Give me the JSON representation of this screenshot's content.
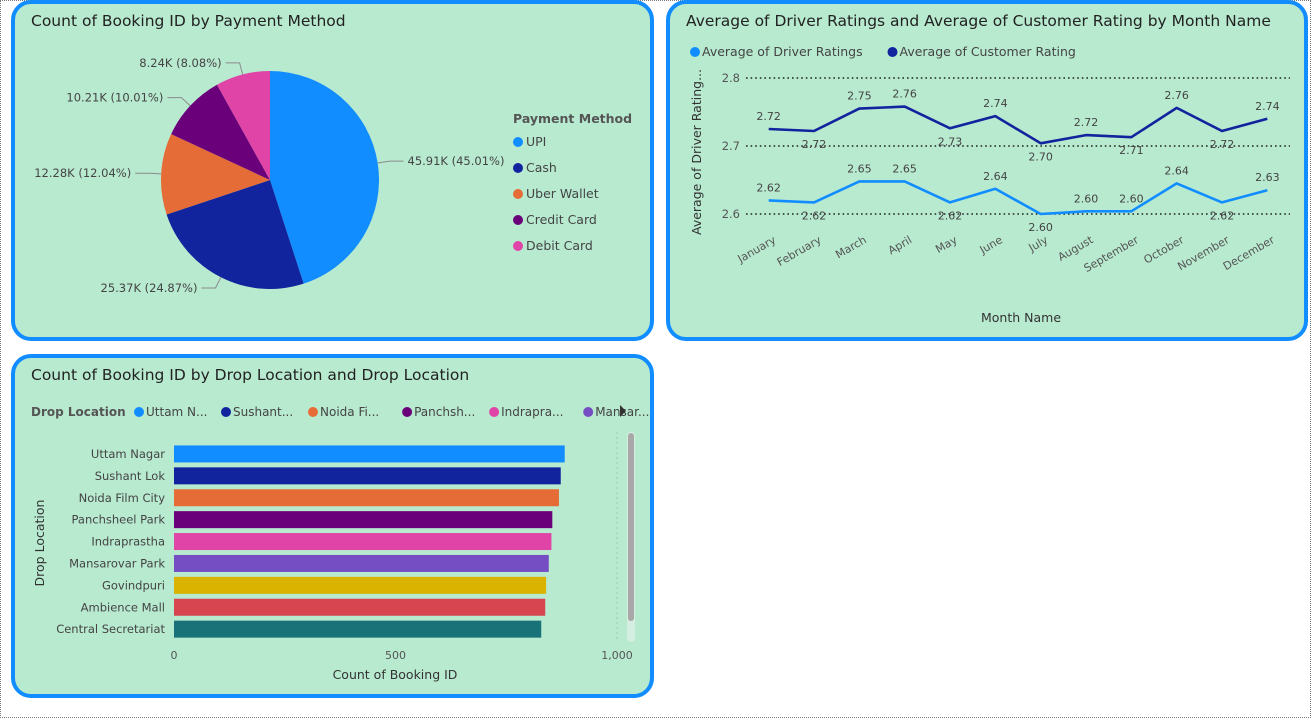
{
  "pie_panel": {
    "title": "Count of Booking ID by Payment Method",
    "legend_title": "Payment Method"
  },
  "line_panel": {
    "title": "Average of Driver Ratings and Average of Customer Rating by Month Name"
  },
  "bar_panel": {
    "title": "Count of Booking ID by Drop Location and Drop Location",
    "legend_title": "Drop Location",
    "legend_items": [
      "Uttam N...",
      "Sushant...",
      "Noida Fi...",
      "Panchsh...",
      "Indrapra...",
      "Mansar..."
    ],
    "legend_more_icon": "triangle-right-icon"
  },
  "chart_data": [
    {
      "type": "pie",
      "title": "Count of Booking ID by Payment Method",
      "legend_title": "Payment Method",
      "categories": [
        "UPI",
        "Cash",
        "Uber Wallet",
        "Credit Card",
        "Debit Card"
      ],
      "values": [
        45.91,
        25.37,
        12.28,
        10.21,
        8.24
      ],
      "value_unit": "K",
      "labels": [
        "45.91K (45.01%)",
        "25.37K (24.87%)",
        "12.28K (12.04%)",
        "10.21K (10.01%)",
        "8.24K (8.08%)"
      ],
      "colors": [
        "#118dff",
        "#12239e",
        "#e66c37",
        "#6b007b",
        "#e044a7"
      ],
      "legend_position": "right"
    },
    {
      "type": "line",
      "title": "Average of Driver Ratings and Average of Customer Rating by Month Name",
      "categories": [
        "January",
        "February",
        "March",
        "April",
        "May",
        "June",
        "July",
        "August",
        "September",
        "October",
        "November",
        "December"
      ],
      "series": [
        {
          "name": "Average of Driver Ratings",
          "color": "#118dff",
          "values": [
            2.62,
            2.617,
            2.648,
            2.648,
            2.617,
            2.637,
            2.6,
            2.604,
            2.604,
            2.645,
            2.617,
            2.635
          ],
          "labels": [
            "2.62",
            "2.62",
            "2.65",
            "2.65",
            "2.62",
            "2.64",
            "2.60",
            "2.60",
            "2.60",
            "2.64",
            "2.62",
            "2.63"
          ]
        },
        {
          "name": "Average of Customer Rating",
          "color": "#12239e",
          "values": [
            2.725,
            2.722,
            2.755,
            2.758,
            2.726,
            2.744,
            2.704,
            2.716,
            2.713,
            2.756,
            2.722,
            2.74
          ],
          "labels": [
            "2.72",
            "2.72",
            "2.75",
            "2.76",
            "2.73",
            "2.74",
            "2.70",
            "2.72",
            "2.71",
            "2.76",
            "2.72",
            "2.74"
          ]
        }
      ],
      "xlabel": "Month Name",
      "ylabel": "Average of Driver Rating...",
      "ylim": [
        2.6,
        2.8
      ],
      "yticks": [
        2.6,
        2.7,
        2.8
      ],
      "ytick_labels": [
        "2.6",
        "2.7",
        "2.8"
      ],
      "grid": "dotted",
      "legend_position": "top-left"
    },
    {
      "type": "bar",
      "orientation": "horizontal",
      "title": "Count of Booking ID by Drop Location and Drop Location",
      "categories": [
        "Uttam Nagar",
        "Sushant Lok",
        "Noida Film City",
        "Panchsheel Park",
        "Indraprastha",
        "Mansarovar Park",
        "Govindpuri",
        "Ambience Mall",
        "Central Secretariat"
      ],
      "values": [
        882,
        873,
        869,
        854,
        852,
        846,
        840,
        838,
        829
      ],
      "colors": [
        "#118dff",
        "#12239e",
        "#e66c37",
        "#6b007b",
        "#e044a7",
        "#744ec2",
        "#d9b300",
        "#d64550",
        "#197278"
      ],
      "xlabel": "Count of Booking ID",
      "ylabel": "Drop Location",
      "xlim": [
        0,
        1000
      ],
      "xticks": [
        0,
        500,
        1000
      ],
      "xtick_labels": [
        "0",
        "500",
        "1,000"
      ],
      "legend_position": "top"
    }
  ]
}
